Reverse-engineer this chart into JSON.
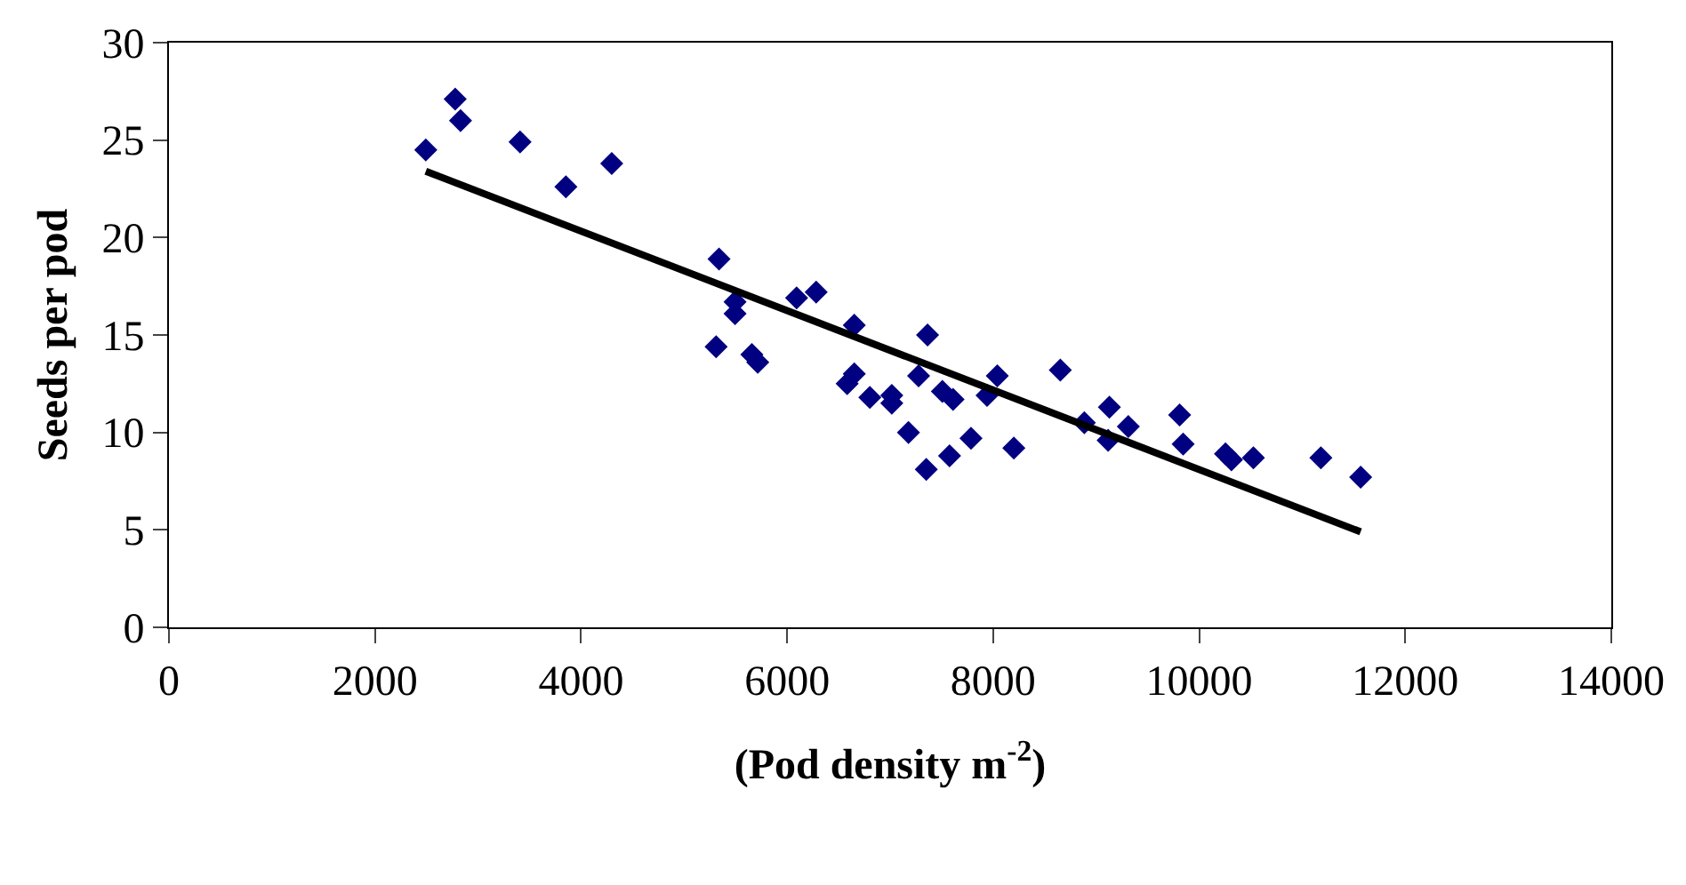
{
  "chart_data": {
    "type": "scatter",
    "xlabel": "(Pod density m$^{-2}$)",
    "ylabel": "Seeds per pod",
    "xlim": [
      0,
      14000
    ],
    "xticks": [
      0,
      2000,
      4000,
      6000,
      8000,
      10000,
      12000,
      14000
    ],
    "ylim": [
      0,
      30
    ],
    "yticks": [
      0,
      5,
      10,
      15,
      20,
      25,
      30
    ],
    "grid": false,
    "marker": "diamond",
    "series": [
      {
        "color": "#000080",
        "x": [
          2493,
          2778,
          2830,
          3408,
          3853,
          4298,
          5339,
          5495,
          5495,
          5311,
          5658,
          5715,
          6092,
          6282,
          6652,
          6652,
          6583,
          6803,
          7016,
          7016,
          7363,
          7276,
          7178,
          7351,
          7507,
          7611,
          7577,
          7785,
          7941,
          8040,
          8201,
          8652,
          8885,
          9128,
          9116,
          9312,
          9810,
          9844,
          10255,
          10313,
          10526,
          11181,
          11567
        ],
        "values": [
          24.5,
          27.1,
          26.0,
          24.9,
          22.6,
          23.8,
          18.9,
          16.7,
          16.1,
          14.4,
          14.0,
          13.6,
          16.9,
          17.2,
          15.5,
          13.0,
          12.5,
          11.8,
          11.9,
          11.5,
          15.0,
          12.9,
          10.0,
          8.1,
          12.1,
          11.7,
          8.8,
          9.7,
          11.9,
          12.9,
          9.2,
          13.2,
          10.5,
          11.3,
          9.6,
          10.3,
          10.9,
          9.4,
          8.9,
          8.6,
          8.7,
          8.7,
          7.7
        ]
      },
      {
        "type": "line",
        "color": "#000000",
        "x": [
          2493,
          11567
        ],
        "values": [
          23.4,
          4.9
        ],
        "marker": "none",
        "line_style": "solid"
      }
    ]
  }
}
